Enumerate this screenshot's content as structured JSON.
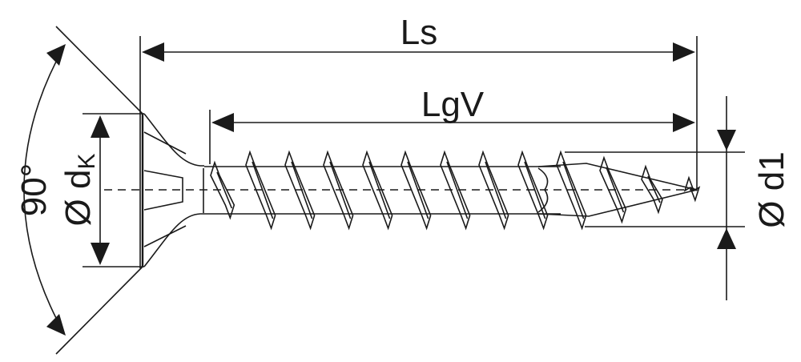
{
  "diagram": {
    "labels": {
      "overall_length": "Ls",
      "thread_length": "LgV",
      "head_angle": "90°",
      "head_diameter": "Ø d",
      "head_diameter_subscript": "K",
      "thread_diameter": "Ø d1"
    },
    "line_color": "#1a1a1a",
    "background": "#ffffff"
  }
}
